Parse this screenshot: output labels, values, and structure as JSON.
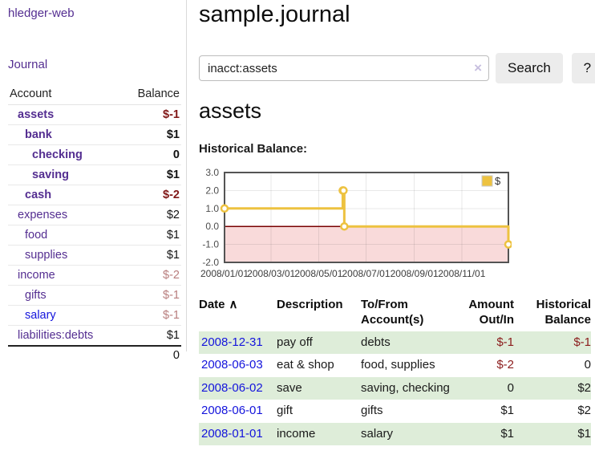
{
  "app": {
    "brand": "hledger-web",
    "nav_journal": "Journal"
  },
  "colors": {
    "accent_purple": "#542e91",
    "link_blue": "#1414dc",
    "neg_strong": "#801717",
    "neg_pale": "#b87d7d",
    "row_green": "#deedd9"
  },
  "sidebar": {
    "accounts": {
      "headers": [
        "Account",
        "Balance"
      ],
      "rows": [
        {
          "name": "assets",
          "balance": "$-1",
          "depth": 1,
          "bold": true,
          "neg": "strong"
        },
        {
          "name": "bank",
          "balance": "$1",
          "depth": 2,
          "bold": true
        },
        {
          "name": "checking",
          "balance": "0",
          "depth": 3,
          "bold": true
        },
        {
          "name": "saving",
          "balance": "$1",
          "depth": 3,
          "bold": true
        },
        {
          "name": "cash",
          "balance": "$-2",
          "depth": 2,
          "bold": true,
          "neg": "strong"
        },
        {
          "name": "expenses",
          "balance": "$2",
          "depth": 1
        },
        {
          "name": "food",
          "balance": "$1",
          "depth": 2
        },
        {
          "name": "supplies",
          "balance": "$1",
          "depth": 2
        },
        {
          "name": "income",
          "balance": "$-2",
          "depth": 1,
          "neg": "pale"
        },
        {
          "name": "gifts",
          "balance": "$-1",
          "depth": 2,
          "neg": "pale"
        },
        {
          "name": "salary",
          "balance": "$-1",
          "depth": 2,
          "neg": "pale",
          "link": "blue"
        },
        {
          "name": "liabilities:debts",
          "balance": "$1",
          "depth": 1
        }
      ],
      "total": "0"
    }
  },
  "main": {
    "title": "sample.journal",
    "search": {
      "value": "inacct:assets",
      "clear_icon": "×",
      "button_label": "Search",
      "help_label": "?"
    },
    "account_heading": "assets"
  },
  "chart_data": {
    "type": "line",
    "title": "Historical Balance:",
    "legend": {
      "label": "$",
      "position": "top-right"
    },
    "series": [
      {
        "name": "$",
        "color": "#edc240",
        "step": true,
        "dates": [
          "2008-01-01",
          "2008-06-01",
          "2008-06-02",
          "2008-06-03",
          "2008-12-31"
        ],
        "values": [
          1,
          2,
          2,
          0,
          -1
        ],
        "x_days": [
          0,
          152,
          153,
          154,
          365
        ]
      }
    ],
    "x_ticks": [
      "2008/01/01",
      "2008/03/01",
      "2008/05/01",
      "2008/07/01",
      "2008/09/01",
      "2008/11/01"
    ],
    "tick_days": [
      0,
      60,
      121,
      182,
      244,
      305
    ],
    "day_span": 365,
    "y_ticks": [
      3.0,
      2.0,
      1.0,
      0.0,
      -1.0,
      -2.0
    ],
    "ylim": [
      -2,
      3
    ],
    "grid": true,
    "negative_region_color": "#f9dada",
    "zero_line_color": "#7a0000",
    "border_color": "#545454"
  },
  "register": {
    "sort_icon": "∧",
    "columns": [
      {
        "line1": "Date",
        "line2": ""
      },
      {
        "line1": "Description",
        "line2": ""
      },
      {
        "line1": "To/From",
        "line2": "Account(s)"
      },
      {
        "line1": "Amount",
        "line2": "Out/In"
      },
      {
        "line1": "Historical",
        "line2": "Balance"
      }
    ],
    "rows": [
      {
        "date": "2008-12-31",
        "description": "pay off",
        "accounts": "debts",
        "amount": "$-1",
        "amount_neg": true,
        "balance": "$-1",
        "balance_neg": true
      },
      {
        "date": "2008-06-03",
        "description": "eat & shop",
        "accounts": "food, supplies",
        "amount": "$-2",
        "amount_neg": true,
        "balance": "0"
      },
      {
        "date": "2008-06-02",
        "description": "save",
        "accounts": "saving, checking",
        "amount": "0",
        "balance": "$2"
      },
      {
        "date": "2008-06-01",
        "description": "gift",
        "accounts": "gifts",
        "amount": "$1",
        "balance": "$2"
      },
      {
        "date": "2008-01-01",
        "description": "income",
        "accounts": "salary",
        "amount": "$1",
        "balance": "$1"
      }
    ]
  }
}
